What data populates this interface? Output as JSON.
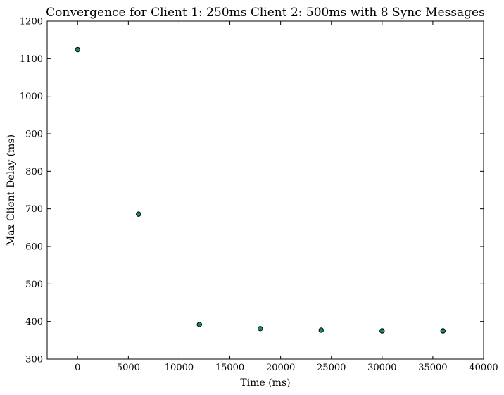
{
  "chart_data": {
    "type": "scatter",
    "title": "Convergence for Client 1: 250ms Client 2: 500ms with 8 Sync Messages",
    "xlabel": "Time (ms)",
    "ylabel": "Max Client Delay (ms)",
    "xlim": [
      -3000,
      40000
    ],
    "ylim": [
      300,
      1200
    ],
    "xticks": [
      0,
      5000,
      10000,
      15000,
      20000,
      25000,
      30000,
      35000,
      40000
    ],
    "yticks": [
      300,
      400,
      500,
      600,
      700,
      800,
      900,
      1000,
      1100,
      1200
    ],
    "grid": false,
    "legend": "none",
    "marker_color": "#1a8a6a",
    "marker_edge_color": "#000000",
    "series": [
      {
        "x": [
          0,
          6000,
          12000,
          18000,
          24000,
          30000,
          36000
        ],
        "y": [
          1124,
          686,
          392,
          381,
          377,
          375,
          375
        ]
      }
    ]
  }
}
